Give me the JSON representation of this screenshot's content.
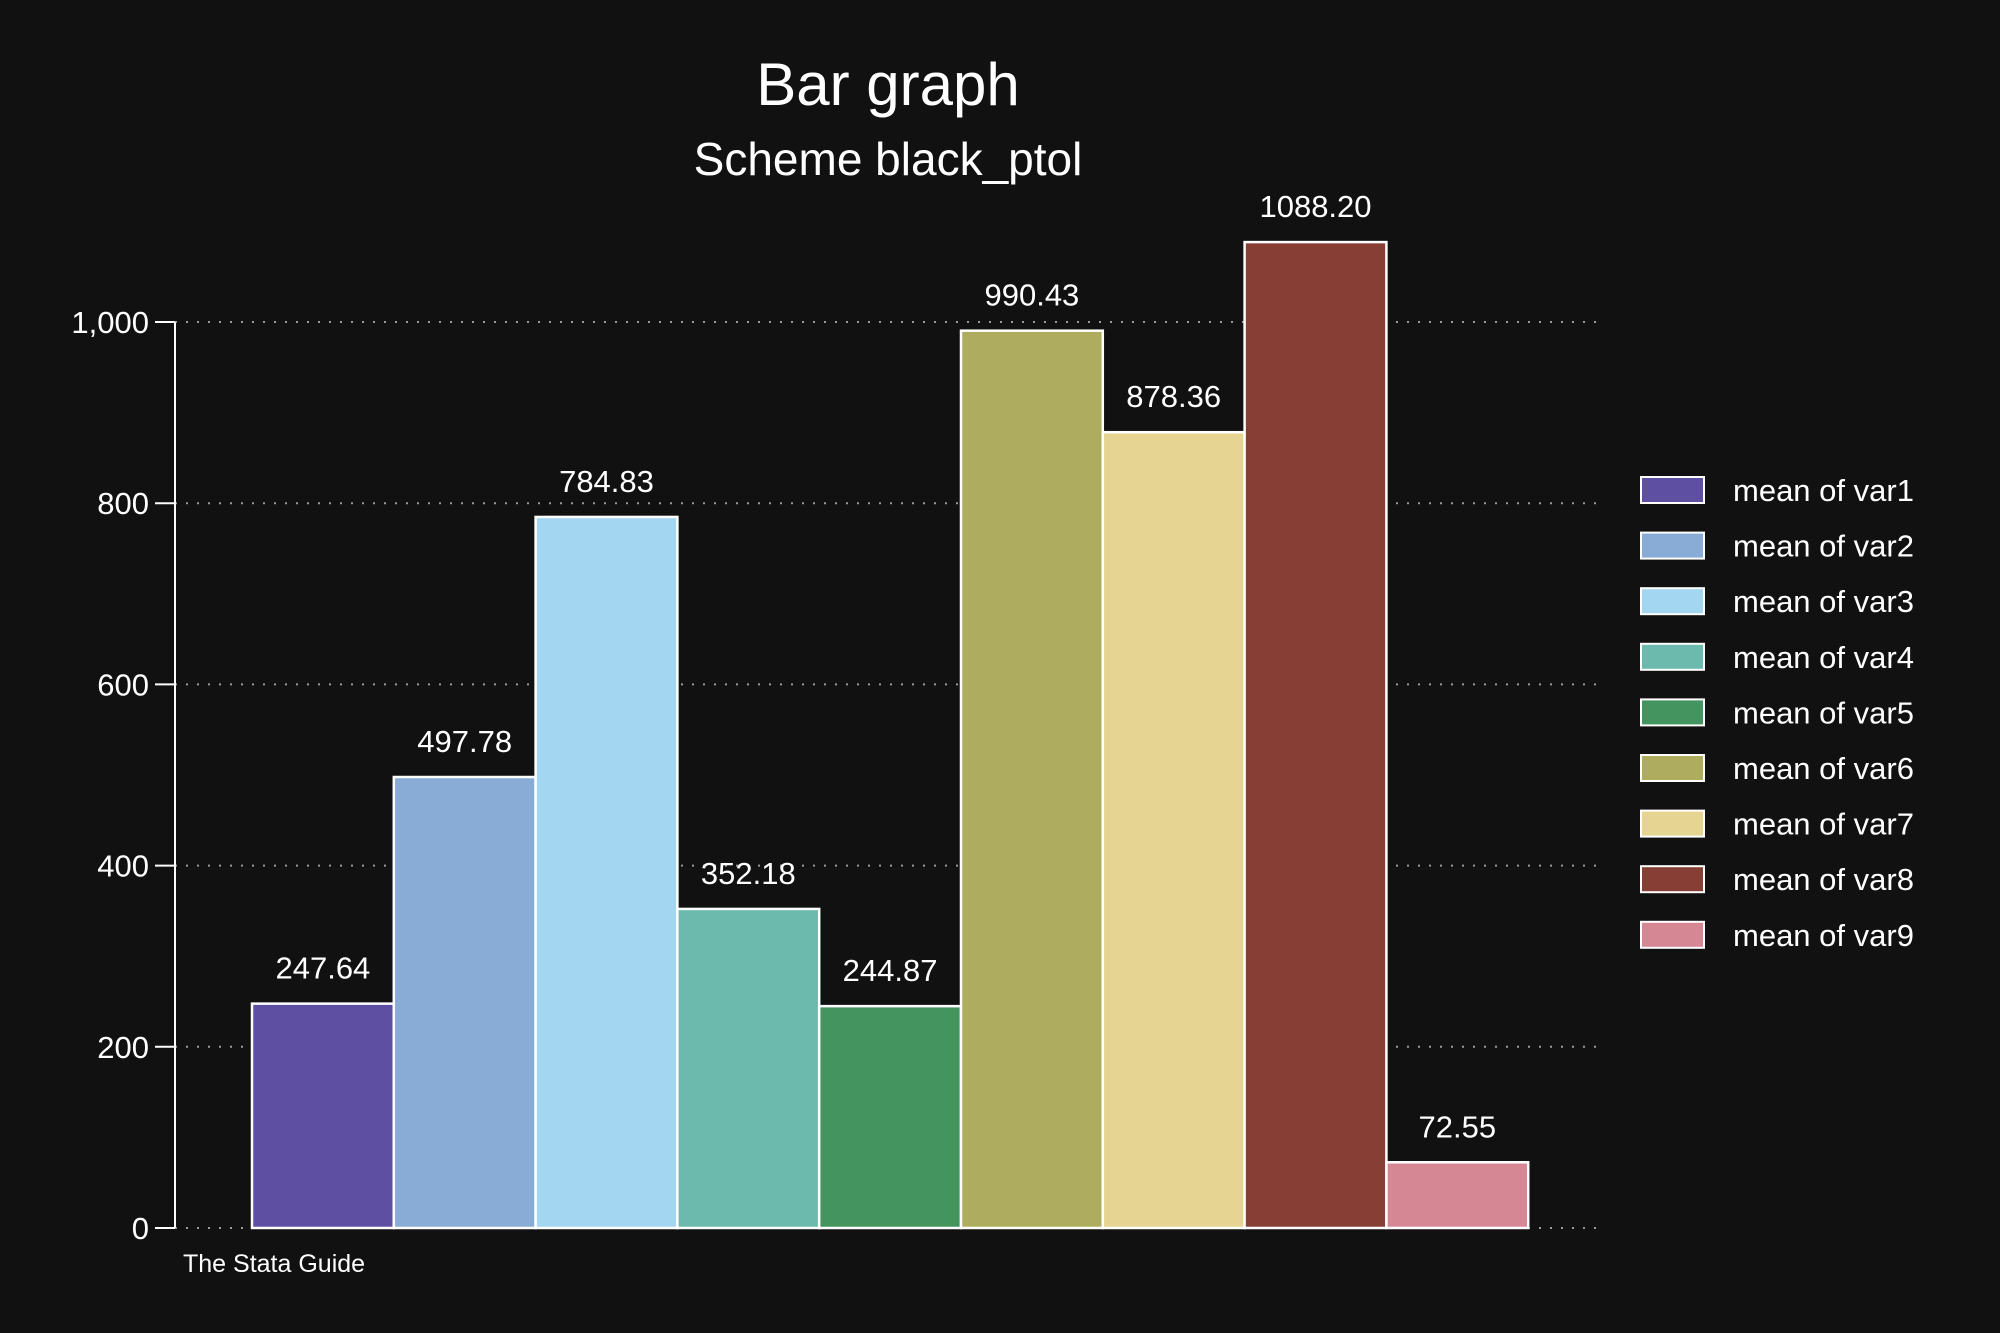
{
  "chart_data": {
    "type": "bar",
    "title": "Bar graph",
    "subtitle": "Scheme black_ptol",
    "note": "The Stata Guide",
    "xlabel": "",
    "ylabel": "",
    "ylim": [
      0,
      1000
    ],
    "yticks": [
      0,
      200,
      400,
      600,
      800,
      1000
    ],
    "ytick_labels": [
      "0",
      "200",
      "400",
      "600",
      "800",
      "1,000"
    ],
    "grid": true,
    "legend_position": "right",
    "series": [
      {
        "name": "mean of var1",
        "value": 247.64,
        "label": "247.64",
        "color": "#5e4fa2"
      },
      {
        "name": "mean of var2",
        "value": 497.78,
        "label": "497.78",
        "color": "#88acd6"
      },
      {
        "name": "mean of var3",
        "value": 784.83,
        "label": "784.83",
        "color": "#a3d6f0"
      },
      {
        "name": "mean of var4",
        "value": 352.18,
        "label": "352.18",
        "color": "#6bbaad"
      },
      {
        "name": "mean of var5",
        "value": 244.87,
        "label": "244.87",
        "color": "#43945e"
      },
      {
        "name": "mean of var6",
        "value": 990.43,
        "label": "990.43",
        "color": "#aead5f"
      },
      {
        "name": "mean of var7",
        "value": 878.36,
        "label": "878.36",
        "color": "#e6d493"
      },
      {
        "name": "mean of var8",
        "value": 1088.2,
        "label": "1088.20",
        "color": "#873f35"
      },
      {
        "name": "mean of var9",
        "value": 72.55,
        "label": "72.55",
        "color": "#d68794"
      }
    ]
  }
}
